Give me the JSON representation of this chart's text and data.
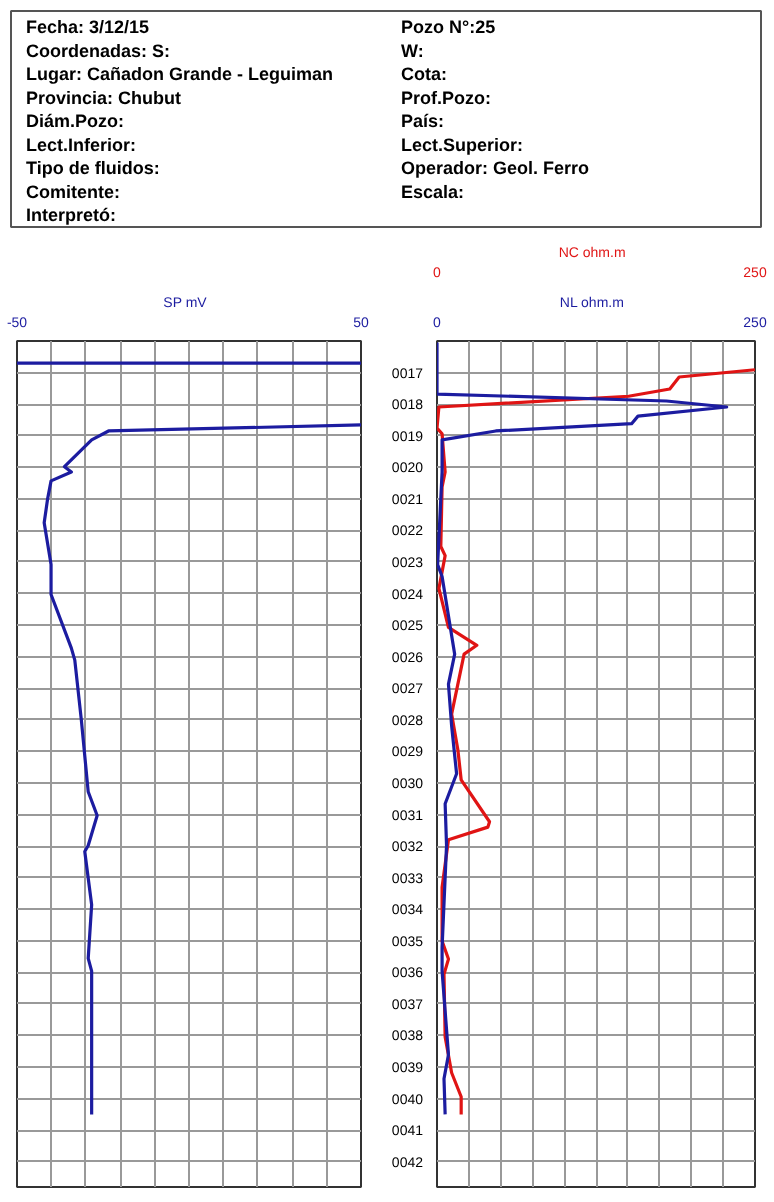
{
  "chart_data": [
    {
      "type": "other",
      "annotations": [
        "Fecha: 3/12/15",
        "Pozo N°:25",
        "Coordenadas: S:",
        "W:",
        "Lugar: Cañadon Grande - Leguiman",
        "Cota:",
        "Provincia: Chubut",
        "Prof.Pozo:",
        "Diám.Pozo:",
        "País:",
        "Lect.Inferior:",
        "Lect.Superior:",
        "Tipo de fluidos:",
        "Operador: Geol. Ferro",
        "Comitente:",
        "Escala:",
        "Interpretó:"
      ]
    },
    {
      "type": "line",
      "xlabel": "mV",
      "xlim": [
        -50,
        50
      ],
      "xticks": [
        -50,
        {
          "value": -40,
          "label": null
        },
        {
          "value": -30,
          "label": null
        },
        {
          "value": -20,
          "label": null
        },
        {
          "value": -10,
          "label": null
        },
        {
          "value": 0,
          "label": null
        },
        {
          "value": 10,
          "label": null
        },
        {
          "value": 20,
          "label": null
        },
        {
          "value": 30,
          "label": null
        },
        {
          "value": 40,
          "label": null
        },
        50
      ],
      "ylim": [
        42.8,
        16.0
      ],
      "yticks": [
        17,
        18,
        19,
        20,
        21,
        22,
        23,
        24,
        25,
        26,
        27,
        28,
        29,
        30,
        31,
        32,
        33,
        34,
        35,
        36,
        37,
        38,
        39,
        40,
        41,
        42
      ],
      "tick_labels": "x",
      "grid": true,
      "series": [
        {
          "name": "SP",
          "color": "#1c1ca0",
          "x": [
            -50,
            50,
            null,
            50,
            -23.4,
            -28.3,
            -36.2,
            -34.2,
            -40.1,
            -41.1,
            -42.1,
            -40.1,
            -40.1,
            -34.2,
            -33.2,
            -31.3,
            -29.3,
            -26.7,
            -29.3,
            -30.3,
            -28.3,
            -29.3,
            -28.3,
            -28.3,
            -28.3
          ],
          "values": [
            16.7,
            16.7,
            null,
            18.66,
            18.85,
            19.13,
            19.98,
            20.15,
            20.43,
            21.0,
            21.76,
            23.08,
            24.03,
            25.73,
            26.11,
            28.0,
            30.28,
            31.03,
            31.98,
            32.17,
            33.86,
            35.56,
            35.96,
            39.37,
            40.5
          ]
        }
      ]
    },
    {
      "type": "line",
      "xlabel": "ohm.m",
      "x2label": "ohm.m",
      "xlim": [
        0,
        250
      ],
      "x2lim": [
        0,
        250
      ],
      "xticks": [
        0,
        {
          "value": 25,
          "label": null
        },
        {
          "value": 50,
          "label": null
        },
        {
          "value": 75,
          "label": null
        },
        {
          "value": 100,
          "label": null
        },
        {
          "value": 125,
          "label": null
        },
        {
          "value": 150,
          "label": null
        },
        {
          "value": 175,
          "label": null
        },
        {
          "value": 200,
          "label": null
        },
        {
          "value": 225,
          "label": null
        },
        250
      ],
      "x2ticks": [
        0,
        250
      ],
      "ylim": [
        42.8,
        16.0
      ],
      "yticks": [
        {
          "value": 17,
          "label": "0017"
        },
        {
          "value": 18,
          "label": "0018"
        },
        {
          "value": 19,
          "label": "0019"
        },
        {
          "value": 20,
          "label": "0020"
        },
        {
          "value": 21,
          "label": "0021"
        },
        {
          "value": 22,
          "label": "0022"
        },
        {
          "value": 23,
          "label": "0023"
        },
        {
          "value": 24,
          "label": "0024"
        },
        {
          "value": 25,
          "label": "0025"
        },
        {
          "value": 26,
          "label": "0026"
        },
        {
          "value": 27,
          "label": "0027"
        },
        {
          "value": 28,
          "label": "0028"
        },
        {
          "value": 29,
          "label": "0029"
        },
        {
          "value": 30,
          "label": "0030"
        },
        {
          "value": 31,
          "label": "0031"
        },
        {
          "value": 32,
          "label": "0032"
        },
        {
          "value": 33,
          "label": "0033"
        },
        {
          "value": 34,
          "label": "0034"
        },
        {
          "value": 35,
          "label": "0035"
        },
        {
          "value": 36,
          "label": "0036"
        },
        {
          "value": 37,
          "label": "0037"
        },
        {
          "value": 38,
          "label": "0038"
        },
        {
          "value": 39,
          "label": "0039"
        },
        {
          "value": 40,
          "label": "0040"
        },
        {
          "value": 41,
          "label": "0041"
        },
        {
          "value": 42,
          "label": "0042"
        }
      ],
      "grid": true,
      "series": [
        {
          "name": "NC",
          "color": "#e01414",
          "x": [
            250,
            190.4,
            183,
            150.6,
            1.5,
            0,
            4,
            6.4,
            4,
            3,
            6.4,
            1.5,
            9,
            31.3,
            21.3,
            11.5,
            16.4,
            19,
            41.3,
            40,
            9,
            4,
            4,
            9,
            5.5,
            6.4,
            11.5,
            19,
            19
          ],
          "values": [
            16.91,
            17.14,
            17.52,
            17.75,
            18.09,
            18.76,
            18.94,
            20.15,
            20.62,
            22.51,
            22.8,
            23.84,
            25.07,
            25.64,
            25.92,
            27.82,
            28.95,
            29.9,
            31.23,
            31.4,
            31.8,
            33.3,
            35.01,
            35.58,
            36.06,
            38.05,
            39.18,
            39.94,
            40.5
          ]
        },
        {
          "name": "NL",
          "color": "#1c1ca0",
          "x": [
            0,
            0,
            180.4,
            227.7,
            158,
            153,
            46.2,
            4,
            4,
            0.5,
            4,
            13.9,
            9,
            11.5,
            15.4,
            6.4,
            7.5,
            4,
            4,
            9,
            5.5,
            6.4
          ],
          "values": [
            16.05,
            17.68,
            17.9,
            18.09,
            18.38,
            18.62,
            18.85,
            19.13,
            20.15,
            23.08,
            23.46,
            25.92,
            26.87,
            28.19,
            29.71,
            30.66,
            31.98,
            35.2,
            35.96,
            38.61,
            39.37,
            40.5
          ]
        }
      ]
    }
  ]
}
